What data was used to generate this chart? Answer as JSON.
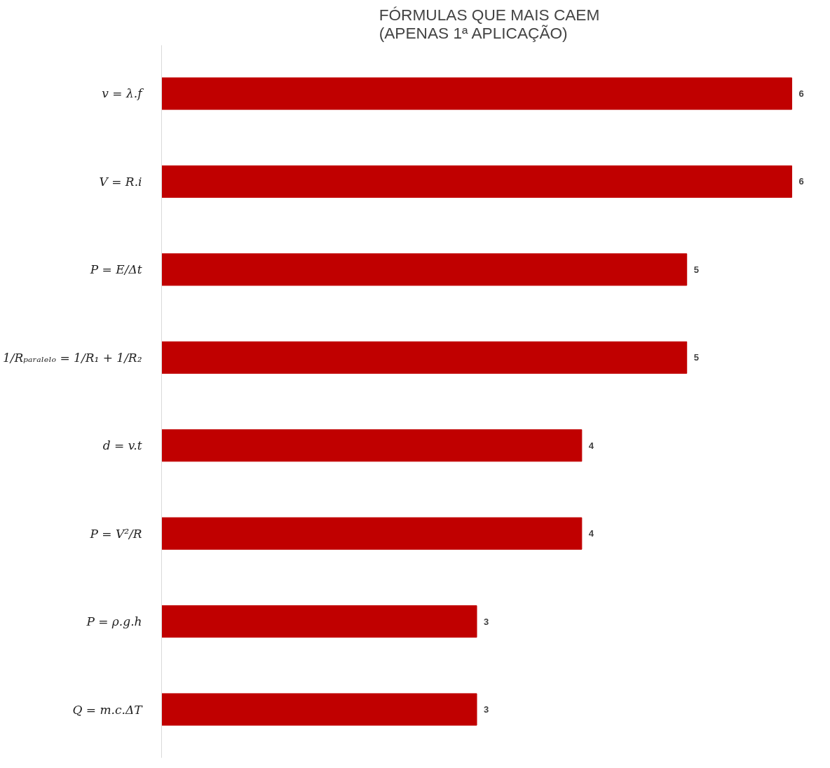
{
  "chart_data": {
    "type": "bar",
    "orientation": "horizontal",
    "title": "FÓRMULAS QUE MAIS CAEM\n(APENAS 1ª APLICAÇÃO)",
    "categories": [
      "v = λ.f",
      "V = R.i",
      "P = E/Δt",
      "1/Rₚₐᵣₐₗₑₗₒ = 1/R₁ + 1/R₂",
      "d = v.t",
      "P = V²/R",
      "P = ρ.g.h",
      "Q = m.c.ΔT"
    ],
    "values": [
      6,
      6,
      5,
      5,
      4,
      4,
      3,
      3
    ],
    "color": "#c00000",
    "data_labels": true
  }
}
